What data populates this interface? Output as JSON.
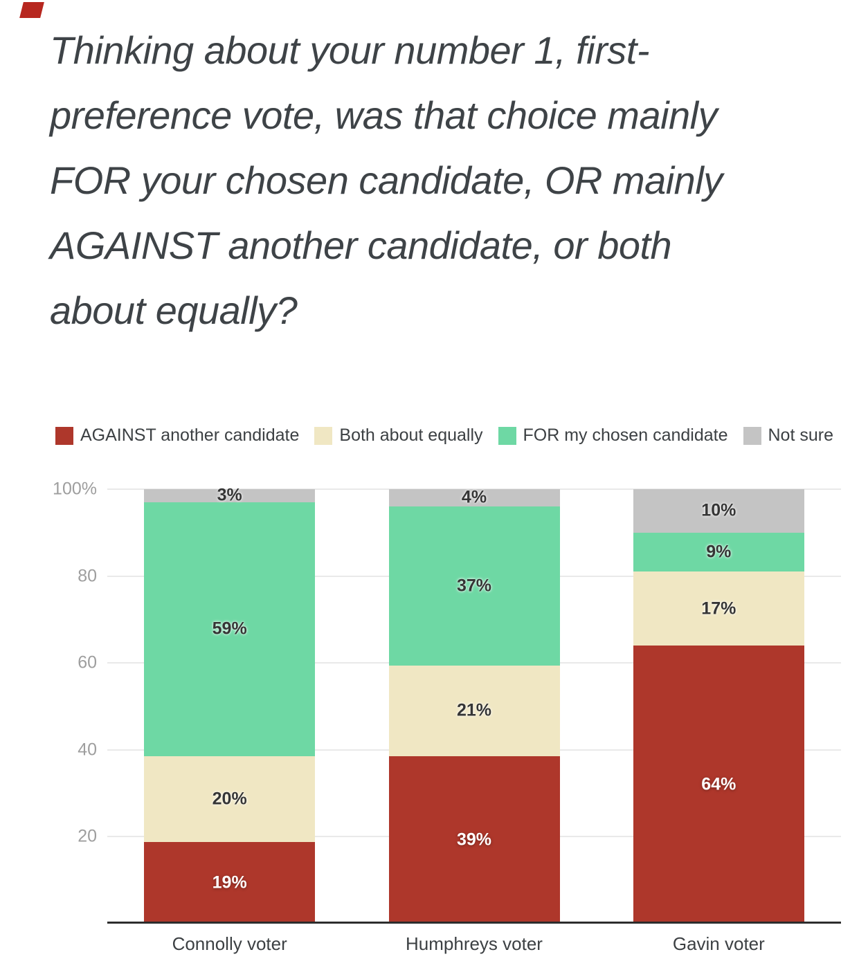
{
  "page": {
    "corner_mark_color": "#b7271f",
    "background_color": "#ffffff"
  },
  "title": {
    "text": "Thinking about your number 1, first-preference vote, was that choice mainly FOR your chosen candidate, OR mainly AGAINST another candidate, or both about equally?",
    "lines": [
      "Thinking about your number 1, first-",
      "preference vote, was that choice mainly",
      "FOR your chosen candidate, OR mainly",
      "AGAINST another candidate, or both",
      "about equally?"
    ]
  },
  "chart_data": {
    "type": "bar",
    "subtype": "stacked-percent-column",
    "title": "",
    "xlabel": "",
    "ylabel": "",
    "categories": [
      "Connolly voter",
      "Humphreys voter",
      "Gavin voter"
    ],
    "series": [
      {
        "name": "AGAINST another candidate",
        "color": "#ae372b",
        "label_color": "#ffffff",
        "values": [
          19,
          39,
          64
        ]
      },
      {
        "name": "Both about equally",
        "color": "#f0e7c3",
        "label_color": "#353535",
        "values": [
          20,
          21,
          17
        ]
      },
      {
        "name": "FOR my chosen candidate",
        "color": "#6ed8a4",
        "label_color": "#353535",
        "values": [
          59,
          37,
          9
        ]
      },
      {
        "name": "Not sure",
        "color": "#c4c4c4",
        "label_color": "#353535",
        "values": [
          3,
          4,
          10
        ]
      }
    ],
    "value_suffix": "%",
    "ylim": [
      0,
      100
    ],
    "y_ticks": [
      {
        "label": "100%",
        "value": 100
      },
      {
        "label": "80",
        "value": 80
      },
      {
        "label": "60",
        "value": 60
      },
      {
        "label": "40",
        "value": 40
      },
      {
        "label": "20",
        "value": 20
      }
    ],
    "grid": true,
    "legend_position": "top"
  },
  "colors": {
    "gridline": "#e9e9e9",
    "axis_line": "#2d2d2d",
    "y_label_text": "#9e9e9e",
    "x_label_text": "#3c4043",
    "legend_text": "#3c4043",
    "title_text": "#3e4347"
  }
}
